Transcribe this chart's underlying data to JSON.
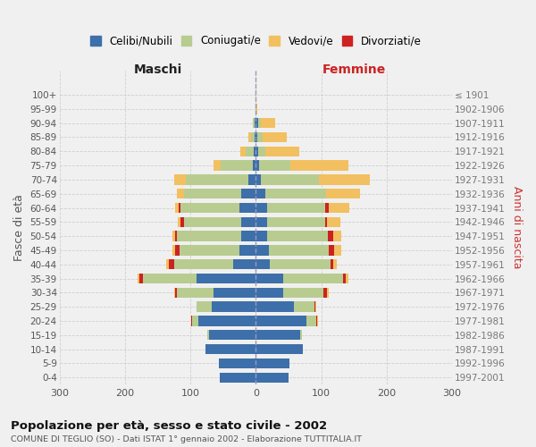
{
  "age_groups": [
    "0-4",
    "5-9",
    "10-14",
    "15-19",
    "20-24",
    "25-29",
    "30-34",
    "35-39",
    "40-44",
    "45-49",
    "50-54",
    "55-59",
    "60-64",
    "65-69",
    "70-74",
    "75-79",
    "80-84",
    "85-89",
    "90-94",
    "95-99",
    "100+"
  ],
  "birth_years": [
    "1997-2001",
    "1992-1996",
    "1987-1991",
    "1982-1986",
    "1977-1981",
    "1972-1976",
    "1967-1971",
    "1962-1966",
    "1957-1961",
    "1952-1956",
    "1947-1951",
    "1942-1946",
    "1937-1941",
    "1932-1936",
    "1927-1931",
    "1922-1926",
    "1917-1921",
    "1912-1916",
    "1907-1911",
    "1902-1906",
    "≤ 1901"
  ],
  "males": {
    "celibi": [
      55,
      57,
      77,
      72,
      88,
      68,
      65,
      90,
      35,
      25,
      22,
      22,
      25,
      22,
      12,
      5,
      3,
      2,
      2,
      0,
      0
    ],
    "coniugati": [
      0,
      0,
      0,
      2,
      10,
      22,
      55,
      82,
      90,
      92,
      98,
      88,
      90,
      88,
      95,
      48,
      12,
      5,
      3,
      0,
      0
    ],
    "vedovi": [
      0,
      0,
      0,
      0,
      0,
      0,
      2,
      2,
      4,
      4,
      4,
      4,
      5,
      10,
      18,
      12,
      8,
      4,
      0,
      0,
      0
    ],
    "divorziati": [
      0,
      0,
      0,
      0,
      1,
      1,
      3,
      6,
      8,
      6,
      3,
      5,
      3,
      0,
      0,
      0,
      0,
      0,
      0,
      0,
      0
    ]
  },
  "females": {
    "nubili": [
      50,
      52,
      72,
      68,
      78,
      58,
      42,
      42,
      22,
      20,
      18,
      18,
      18,
      15,
      8,
      5,
      3,
      2,
      3,
      0,
      0
    ],
    "coniugate": [
      0,
      0,
      0,
      3,
      15,
      32,
      62,
      92,
      92,
      92,
      92,
      88,
      88,
      92,
      88,
      48,
      12,
      8,
      5,
      0,
      0
    ],
    "vedove": [
      0,
      0,
      0,
      0,
      1,
      2,
      3,
      5,
      5,
      10,
      12,
      20,
      32,
      52,
      78,
      88,
      52,
      38,
      22,
      2,
      1
    ],
    "divorziate": [
      0,
      0,
      0,
      0,
      1,
      1,
      5,
      3,
      5,
      8,
      8,
      3,
      5,
      0,
      0,
      0,
      0,
      0,
      0,
      0,
      0
    ]
  },
  "colors": {
    "celibi": "#3d6faa",
    "coniugati": "#b8cc90",
    "vedovi": "#f2c060",
    "divorziati": "#cc2222"
  },
  "xlim": 300,
  "title": "Popolazione per età, sesso e stato civile - 2002",
  "subtitle": "COMUNE DI TEGLIO (SO) - Dati ISTAT 1° gennaio 2002 - Elaborazione TUTTITALIA.IT",
  "xlabel_left": "Maschi",
  "xlabel_right": "Femmine",
  "ylabel_left": "Fasce di età",
  "ylabel_right": "Anni di nascita",
  "legend_labels": [
    "Celibi/Nubili",
    "Coniugati/e",
    "Vedovi/e",
    "Divorziati/e"
  ],
  "background_color": "#f0f0f0",
  "grid_color": "#cccccc"
}
